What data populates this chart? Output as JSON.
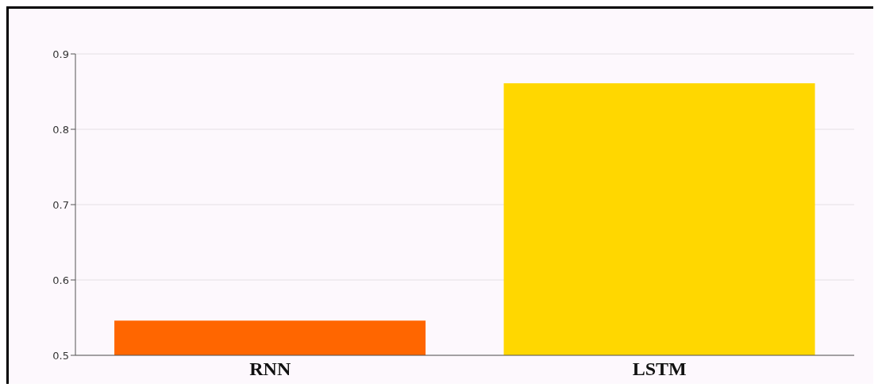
{
  "chart_data": {
    "type": "bar",
    "categories": [
      "RNN",
      "LSTM"
    ],
    "values": [
      0.546,
      0.861
    ],
    "colors": [
      "#ff6600",
      "#ffd700"
    ],
    "ylim": [
      0.5,
      0.9
    ],
    "yticks": [
      0.5,
      0.6,
      0.7,
      0.8,
      0.9
    ],
    "grid": "y",
    "legend": false
  }
}
